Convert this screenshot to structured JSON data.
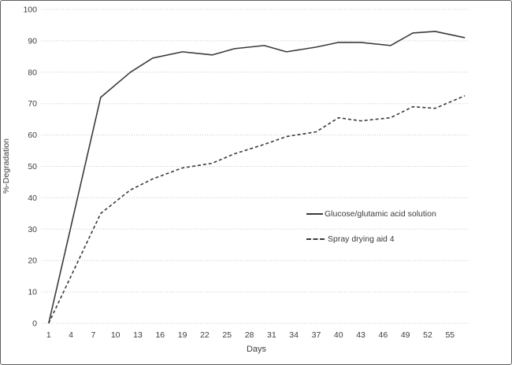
{
  "figure": {
    "background_color": "#ffffff",
    "border_color": "#5f5f5f",
    "text_color": "#3d3d3d",
    "grid_color": "#c8c8c8",
    "line_color": "#3a3a3a"
  },
  "chart_data": {
    "type": "line",
    "title": "",
    "xlabel": "Days",
    "ylabel": "%-Degradation",
    "xlim": [
      0.6,
      57.3
    ],
    "ylim": [
      0,
      100
    ],
    "x_ticks": [
      1,
      4,
      7,
      10,
      13,
      16,
      19,
      22,
      25,
      28,
      31,
      34,
      37,
      40,
      43,
      46,
      49,
      52,
      55
    ],
    "y_ticks": [
      0,
      10,
      20,
      30,
      40,
      50,
      60,
      70,
      80,
      90,
      100
    ],
    "grid": "horizontal dotted",
    "legend_position": "inside middle-right",
    "x": [
      1,
      8,
      12,
      15,
      19,
      23,
      26,
      30,
      33,
      37,
      40,
      43,
      47,
      50,
      53,
      57
    ],
    "series": [
      {
        "name": "Glucose/glutamic acid solution",
        "style": "solid",
        "color": "#3a3a3a",
        "values": [
          0,
          72,
          80,
          84.5,
          86.5,
          85.5,
          87.5,
          88.5,
          86.5,
          88,
          89.5,
          89.5,
          88.5,
          92.5,
          93,
          91
        ]
      },
      {
        "name": "Spray drying aid 4",
        "style": "dashed",
        "color": "#3a3a3a",
        "values": [
          0,
          35,
          42.5,
          46,
          49.5,
          51,
          54,
          57,
          59.5,
          61,
          65.5,
          64.5,
          65.5,
          69,
          68.5,
          72.5
        ]
      }
    ]
  }
}
